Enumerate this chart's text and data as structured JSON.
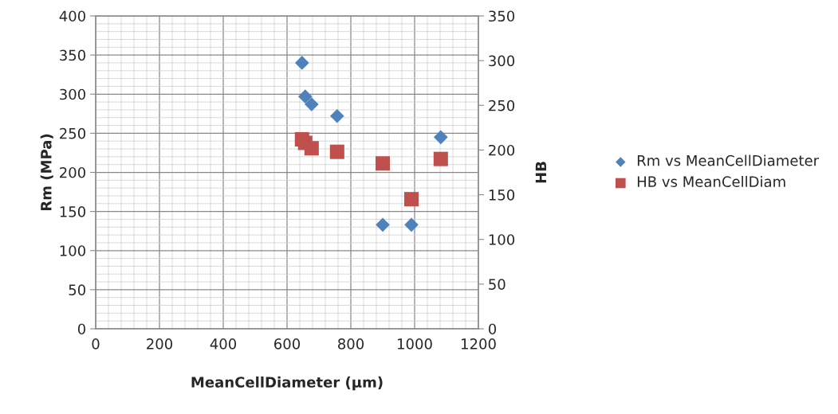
{
  "chart_data": {
    "type": "scatter",
    "xlabel": "MeanCellDiameter (µm)",
    "ylabel": "Rm (MPa)",
    "y2label": "HB",
    "series": [
      {
        "name": "Rm vs MeanCellDiameter",
        "color": "#4f81bd",
        "marker": "diamond",
        "x": [
          647,
          657,
          677,
          757,
          900,
          990,
          1082
        ],
        "values": [
          340,
          297,
          287,
          272,
          133,
          133,
          245
        ]
      },
      {
        "name": "HB vs MeanCellDiam",
        "color": "#c0504d",
        "marker": "square",
        "axis": "y2",
        "x": [
          647,
          657,
          677,
          757,
          900,
          990,
          1082
        ],
        "values": [
          212,
          208,
          202,
          198,
          185,
          145,
          190
        ]
      }
    ],
    "xlim": [
      0,
      1200
    ],
    "xticks": [
      0,
      200,
      400,
      600,
      800,
      1000,
      1200
    ],
    "ylim": [
      0,
      400
    ],
    "yticks": [
      0,
      50,
      100,
      150,
      200,
      250,
      300,
      350,
      400
    ],
    "y2lim": [
      0,
      350
    ],
    "y2ticks": [
      0,
      50,
      100,
      150,
      200,
      250,
      300,
      350
    ],
    "grid": true,
    "legend": "right"
  }
}
